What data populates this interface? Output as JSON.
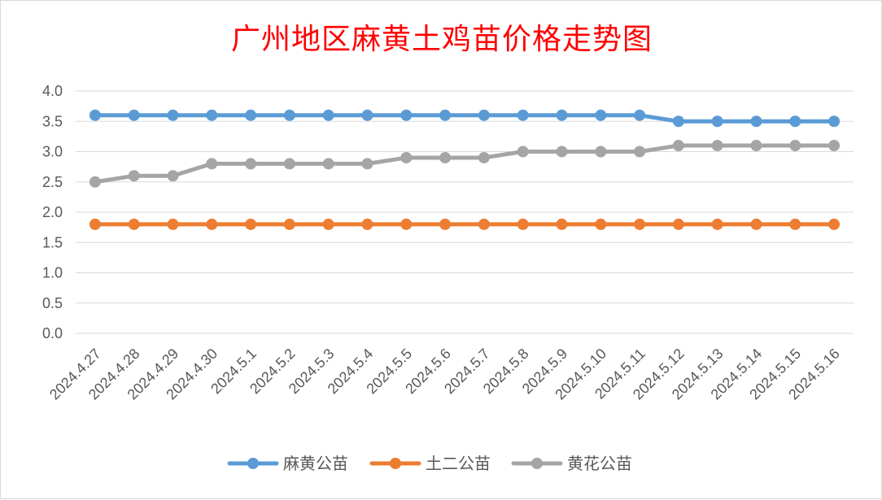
{
  "chart_data": {
    "type": "line",
    "title": "广州地区麻黄土鸡苗价格走势图",
    "xlabel": "",
    "ylabel": "",
    "categories": [
      "2024.4.27",
      "2024.4.28",
      "2024.4.29",
      "2024.4.30",
      "2024.5.1",
      "2024.5.2",
      "2024.5.3",
      "2024.5.4",
      "2024.5.5",
      "2024.5.6",
      "2024.5.7",
      "2024.5.8",
      "2024.5.9",
      "2024.5.10",
      "2024.5.11",
      "2024.5.12",
      "2024.5.13",
      "2024.5.14",
      "2024.5.15",
      "2024.5.16"
    ],
    "ylim": [
      0,
      4
    ],
    "yticks": [
      "0.0",
      "0.5",
      "1.0",
      "1.5",
      "2.0",
      "2.5",
      "3.0",
      "3.5",
      "4.0"
    ],
    "grid": true,
    "legend_position": "bottom",
    "series": [
      {
        "name": "麻黄公苗",
        "color": "#5b9bd5",
        "values": [
          3.6,
          3.6,
          3.6,
          3.6,
          3.6,
          3.6,
          3.6,
          3.6,
          3.6,
          3.6,
          3.6,
          3.6,
          3.6,
          3.6,
          3.6,
          3.5,
          3.5,
          3.5,
          3.5,
          3.5
        ]
      },
      {
        "name": "土二公苗",
        "color": "#ed7d31",
        "values": [
          1.8,
          1.8,
          1.8,
          1.8,
          1.8,
          1.8,
          1.8,
          1.8,
          1.8,
          1.8,
          1.8,
          1.8,
          1.8,
          1.8,
          1.8,
          1.8,
          1.8,
          1.8,
          1.8,
          1.8
        ]
      },
      {
        "name": "黄花公苗",
        "color": "#a5a5a5",
        "values": [
          2.5,
          2.6,
          2.6,
          2.8,
          2.8,
          2.8,
          2.8,
          2.8,
          2.9,
          2.9,
          2.9,
          3.0,
          3.0,
          3.0,
          3.0,
          3.1,
          3.1,
          3.1,
          3.1,
          3.1
        ]
      }
    ]
  }
}
